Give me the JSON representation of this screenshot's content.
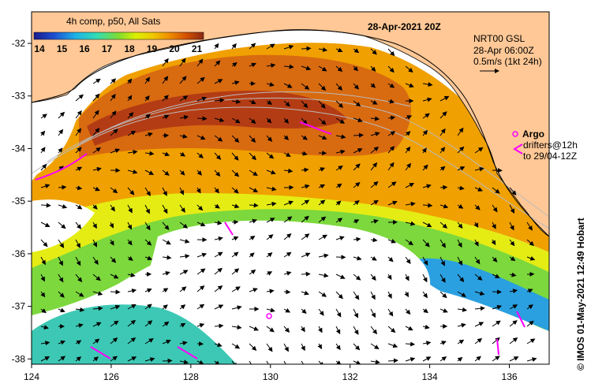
{
  "title": "28-Apr-2021 20Z",
  "composite_label": "4h comp, p50, All Sats",
  "colorbar": {
    "ticks": [
      "14",
      "15",
      "16",
      "17",
      "18",
      "19",
      "20",
      "21"
    ],
    "colors": [
      "#1a1a8c",
      "#1e50d2",
      "#1eb4e6",
      "#32dcb4",
      "#82dc32",
      "#dcf000",
      "#f0c800",
      "#f08c00",
      "#d25000",
      "#a02800",
      "#6e1414"
    ]
  },
  "current_info": {
    "line1": "NRT00 GSL",
    "line2": "28-Apr 06:00Z",
    "line3": "0.5m/s (1kt 24h)"
  },
  "argo_label": "Argo",
  "drifters_line1": "drifters@12h",
  "drifters_line2": "to 29/04-12Z",
  "credit": "© IMOS 01-May-2021 12:49 Hobart",
  "axes": {
    "x_ticks": [
      "124",
      "126",
      "128",
      "130",
      "132",
      "134",
      "136"
    ],
    "y_ticks": [
      "-32",
      "-33",
      "-34",
      "-35",
      "-36",
      "-37",
      "-38"
    ],
    "x_range": [
      124,
      137
    ],
    "y_range": [
      -38.1,
      -31.4
    ]
  },
  "colors": {
    "land": "#ffc896",
    "frame": "#000000",
    "argo": "#ff00ff"
  }
}
